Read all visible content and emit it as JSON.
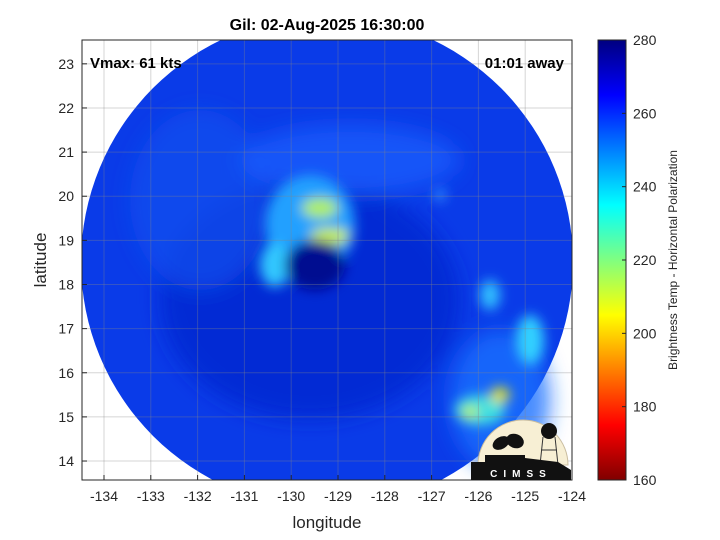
{
  "chart_data": {
    "type": "heatmap",
    "title": "Gil: 02-Aug-2025 16:30:00",
    "xlabel": "longitude",
    "ylabel": "latitude",
    "xlim": [
      -134.47,
      -124
    ],
    "ylim": [
      13.57,
      23.54
    ],
    "xticks": [
      -134,
      -133,
      -132,
      -131,
      -130,
      -129,
      -128,
      -127,
      -126,
      -125,
      -124
    ],
    "yticks": [
      14,
      15,
      16,
      17,
      18,
      19,
      20,
      21,
      22,
      23
    ],
    "grid": true,
    "annotations": {
      "vmax": "Vmax: 61 kts",
      "time_away": "01:01 away"
    },
    "storm_center": {
      "lon": -129.4,
      "lat": 18.5
    },
    "colorbar": {
      "label": "Brightness Temp - Horizontal Polarization",
      "range": [
        160,
        280
      ],
      "ticks": [
        160,
        180,
        200,
        220,
        240,
        260,
        280
      ],
      "colormap": "jet"
    },
    "logo": "CIMSS"
  }
}
